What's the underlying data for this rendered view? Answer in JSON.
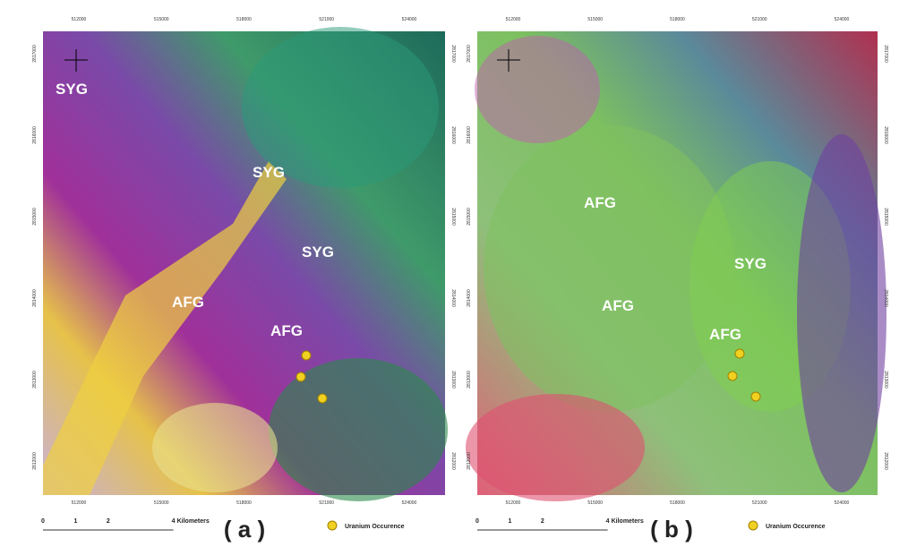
{
  "panels": [
    {
      "label": "( a )",
      "x_ticks": [
        "512000",
        "515000",
        "518000",
        "521000",
        "524000"
      ],
      "y_ticks": [
        "2817000",
        "2816000",
        "2815000",
        "2814000",
        "2813000",
        "2812000"
      ],
      "units": [
        "SYG",
        "SYG",
        "SYG",
        "AFG",
        "AFG"
      ],
      "scale": {
        "ticks": [
          "0",
          "1",
          "2",
          "4"
        ],
        "unit": "Kilometers"
      },
      "legend": "Uranium Occurence"
    },
    {
      "label": "( b )",
      "x_ticks": [
        "512000",
        "515000",
        "518000",
        "521000",
        "524000"
      ],
      "y_ticks": [
        "2817000",
        "2816000",
        "2815000",
        "2814000",
        "2813000",
        "2812000"
      ],
      "units": [
        "AFG",
        "AFG",
        "SYG",
        "AFG"
      ],
      "scale": {
        "ticks": [
          "0",
          "1",
          "2",
          "4"
        ],
        "unit": "Kilometers"
      },
      "legend": "Uranium Occurence"
    }
  ]
}
